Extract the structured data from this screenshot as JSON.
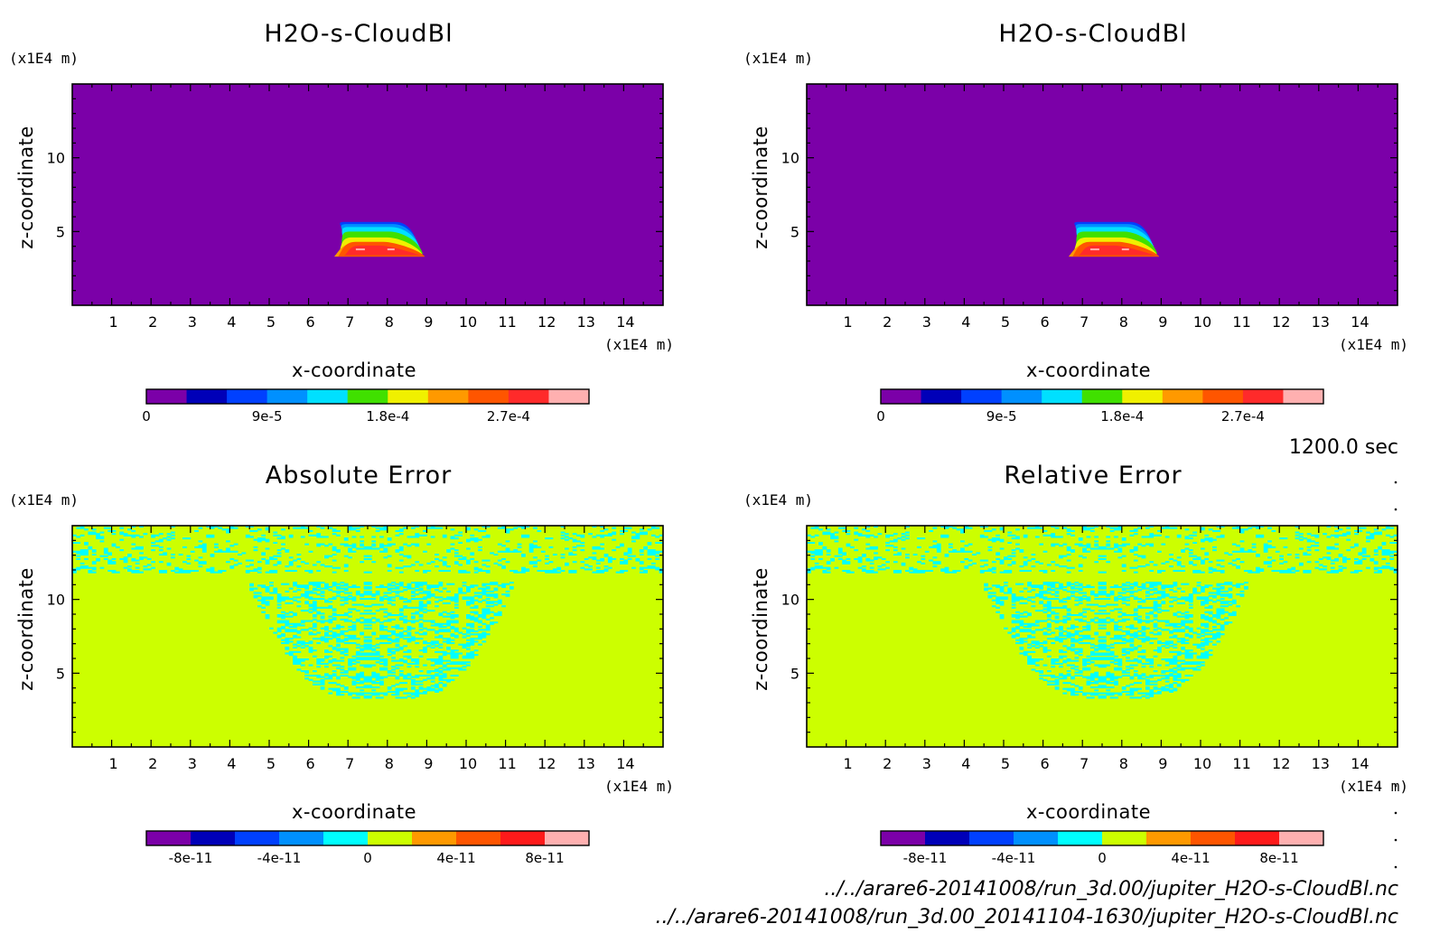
{
  "time_label": "1200.0 sec",
  "file_paths": [
    "../../arare6-20141008/run_3d.00/jupiter_H2O-s-CloudBl.nc",
    "../../arare6-20141008/run_3d.00_20141104-1630/jupiter_H2O-s-CloudBl.nc"
  ],
  "chart_data": [
    {
      "type": "heatmap",
      "title": "H2O-s-CloudBl",
      "xlabel": "x-coordinate",
      "ylabel": "z-coordinate",
      "x_unit": "(x1E4 m)",
      "y_unit": "(x1E4 m)",
      "xlim": [
        0,
        15
      ],
      "ylim": [
        0,
        15
      ],
      "x_ticks": [
        1,
        2,
        3,
        4,
        5,
        6,
        7,
        8,
        9,
        10,
        11,
        12,
        13,
        14
      ],
      "y_ticks": [
        5,
        10
      ],
      "field": "cloud",
      "colorbar": {
        "colors": [
          "#7b00a8",
          "#0000b8",
          "#0040ff",
          "#0090ff",
          "#00e0ff",
          "#40e000",
          "#f0f000",
          "#ff9900",
          "#ff5500",
          "#ff2a2a",
          "#ffb0b0"
        ],
        "tick_labels": [
          "0",
          "9e-5",
          "1.8e-4",
          "2.7e-4"
        ],
        "tick_index": [
          0,
          3,
          6,
          9
        ]
      }
    },
    {
      "type": "heatmap",
      "title": "H2O-s-CloudBl",
      "xlabel": "x-coordinate",
      "ylabel": "z-coordinate",
      "x_unit": "(x1E4 m)",
      "y_unit": "(x1E4 m)",
      "xlim": [
        0,
        15
      ],
      "ylim": [
        0,
        15
      ],
      "x_ticks": [
        1,
        2,
        3,
        4,
        5,
        6,
        7,
        8,
        9,
        10,
        11,
        12,
        13,
        14
      ],
      "y_ticks": [
        5,
        10
      ],
      "field": "cloud",
      "colorbar": {
        "colors": [
          "#7b00a8",
          "#0000b8",
          "#0040ff",
          "#0090ff",
          "#00e0ff",
          "#40e000",
          "#f0f000",
          "#ff9900",
          "#ff5500",
          "#ff2a2a",
          "#ffb0b0"
        ],
        "tick_labels": [
          "0",
          "9e-5",
          "1.8e-4",
          "2.7e-4"
        ],
        "tick_index": [
          0,
          3,
          6,
          9
        ]
      }
    },
    {
      "type": "heatmap",
      "title": "Absolute Error",
      "xlabel": "x-coordinate",
      "ylabel": "z-coordinate",
      "x_unit": "(x1E4 m)",
      "y_unit": "(x1E4 m)",
      "xlim": [
        0,
        15
      ],
      "ylim": [
        0,
        15
      ],
      "x_ticks": [
        1,
        2,
        3,
        4,
        5,
        6,
        7,
        8,
        9,
        10,
        11,
        12,
        13,
        14
      ],
      "y_ticks": [
        5,
        10
      ],
      "field": "error",
      "colorbar": {
        "colors": [
          "#7b00a8",
          "#0000b8",
          "#0040ff",
          "#0090ff",
          "#00ffff",
          "#ccff00",
          "#ff9900",
          "#ff5500",
          "#ff1a1a",
          "#ffb0b0"
        ],
        "tick_labels": [
          "-8e-11",
          "-4e-11",
          "0",
          "4e-11",
          "8e-11"
        ],
        "tick_index": [
          1,
          3,
          5,
          7,
          9
        ]
      }
    },
    {
      "type": "heatmap",
      "title": "Relative Error",
      "xlabel": "x-coordinate",
      "ylabel": "z-coordinate",
      "x_unit": "(x1E4 m)",
      "y_unit": "(x1E4 m)",
      "xlim": [
        0,
        15
      ],
      "ylim": [
        0,
        15
      ],
      "x_ticks": [
        1,
        2,
        3,
        4,
        5,
        6,
        7,
        8,
        9,
        10,
        11,
        12,
        13,
        14
      ],
      "y_ticks": [
        5,
        10
      ],
      "field": "error",
      "colorbar": {
        "colors": [
          "#7b00a8",
          "#0000b8",
          "#0040ff",
          "#0090ff",
          "#00ffff",
          "#ccff00",
          "#ff9900",
          "#ff5500",
          "#ff1a1a",
          "#ffb0b0"
        ],
        "tick_labels": [
          "-8e-11",
          "-4e-11",
          "0",
          "4e-11",
          "8e-11"
        ],
        "tick_index": [
          1,
          3,
          5,
          7,
          9
        ]
      }
    }
  ]
}
